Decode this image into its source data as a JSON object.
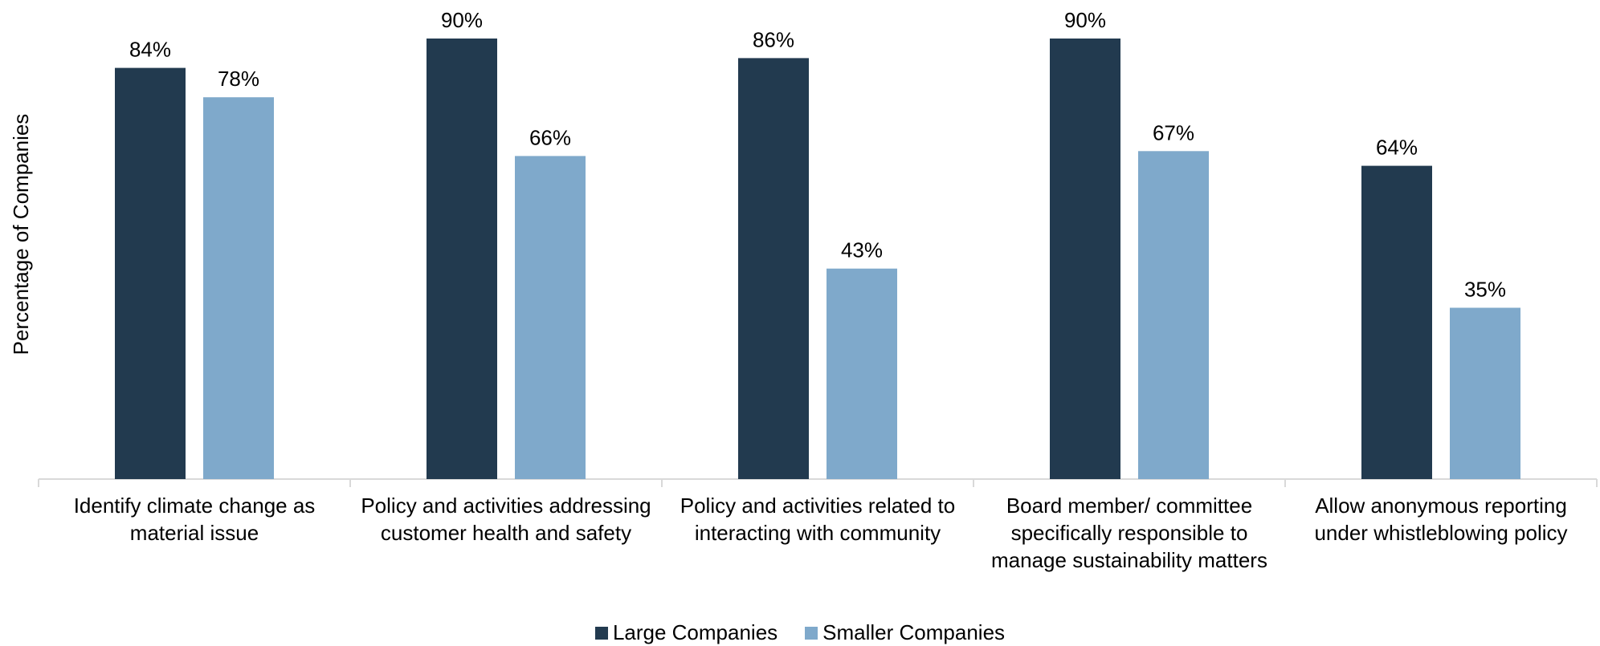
{
  "chart_data": {
    "type": "bar",
    "y_label": "Percentage of Companies",
    "categories": [
      "Identify climate change as material issue",
      "Policy and activities addressing customer health and safety",
      "Policy and activities related to interacting with community",
      "Board member/ committee specifically responsible to manage sustainability matters",
      "Allow anonymous reporting under whistleblowing policy"
    ],
    "series": [
      {
        "name": "Large Companies",
        "color": "#223a4f",
        "values": [
          84,
          90,
          86,
          90,
          64
        ],
        "value_labels": [
          "84%",
          "90%",
          "86%",
          "90%",
          "64%"
        ]
      },
      {
        "name": "Smaller Companies",
        "color": "#7fa9cb",
        "values": [
          78,
          66,
          43,
          67,
          35
        ],
        "value_labels": [
          "78%",
          "66%",
          "43%",
          "67%",
          "35%"
        ]
      }
    ],
    "ylim": [
      0,
      100
    ],
    "legend": "bottom"
  }
}
